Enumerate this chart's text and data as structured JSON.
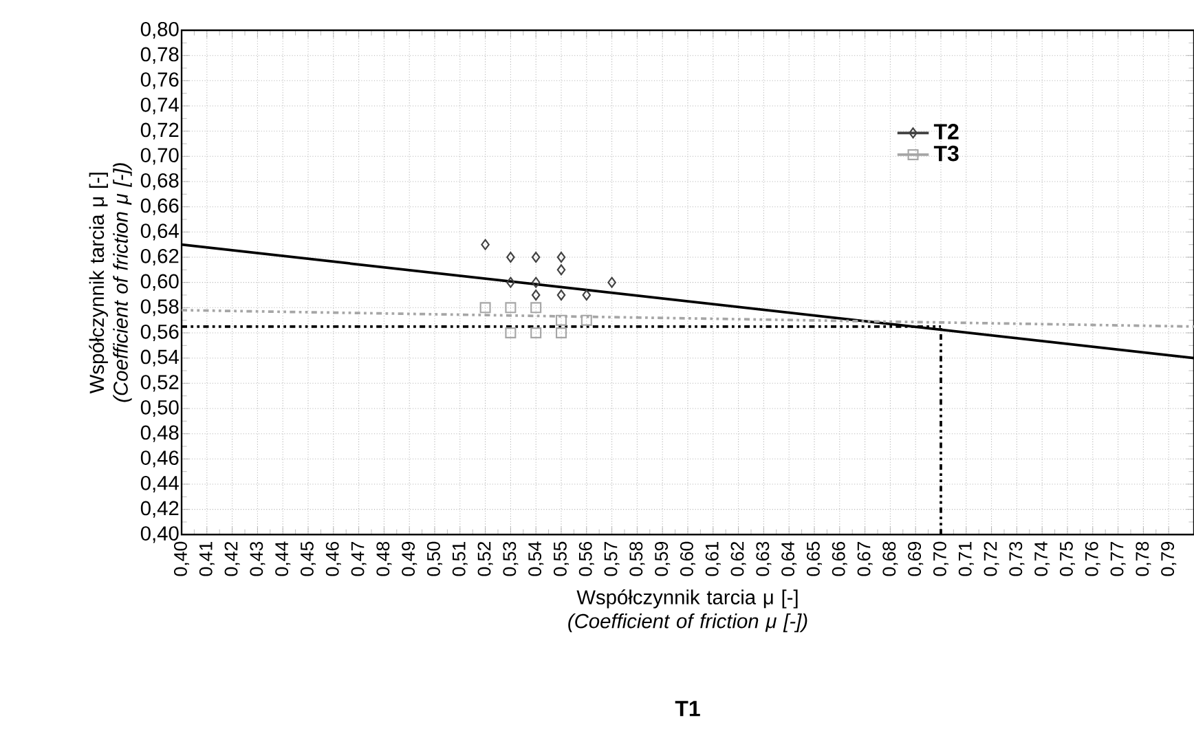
{
  "chart_data": {
    "type": "scatter",
    "xlabel": "Współczynnik tarcia μ [-] *(Coefficient of friction μ [-])*",
    "ylabel": "Współczynnik tarcia μ [-] *(Coefficient of friction μ [-])*",
    "annotations": [
      "T1"
    ],
    "xlim": [
      0.4,
      0.8
    ],
    "ylim": [
      0.4,
      0.8
    ],
    "xticks": [
      {
        "value": 0.4,
        "label": "0,40"
      },
      {
        "value": 0.41,
        "label": "0,41"
      },
      {
        "value": 0.42,
        "label": "0,42"
      },
      {
        "value": 0.43,
        "label": "0,43"
      },
      {
        "value": 0.44,
        "label": "0,44"
      },
      {
        "value": 0.45,
        "label": "0,45"
      },
      {
        "value": 0.46,
        "label": "0,46"
      },
      {
        "value": 0.47,
        "label": "0,47"
      },
      {
        "value": 0.48,
        "label": "0,48"
      },
      {
        "value": 0.49,
        "label": "0,49"
      },
      {
        "value": 0.5,
        "label": "0,50"
      },
      {
        "value": 0.51,
        "label": "0,51"
      },
      {
        "value": 0.52,
        "label": "0,52"
      },
      {
        "value": 0.53,
        "label": "0,53"
      },
      {
        "value": 0.54,
        "label": "0,54"
      },
      {
        "value": 0.55,
        "label": "0,55"
      },
      {
        "value": 0.56,
        "label": "0,56"
      },
      {
        "value": 0.57,
        "label": "0,57"
      },
      {
        "value": 0.58,
        "label": "0,58"
      },
      {
        "value": 0.59,
        "label": "0,59"
      },
      {
        "value": 0.6,
        "label": "0,60"
      },
      {
        "value": 0.61,
        "label": "0,61"
      },
      {
        "value": 0.62,
        "label": "0,62"
      },
      {
        "value": 0.63,
        "label": "0,63"
      },
      {
        "value": 0.64,
        "label": "0,64"
      },
      {
        "value": 0.65,
        "label": "0,65"
      },
      {
        "value": 0.66,
        "label": "0,66"
      },
      {
        "value": 0.67,
        "label": "0,67"
      },
      {
        "value": 0.68,
        "label": "0,68"
      },
      {
        "value": 0.69,
        "label": "0,69"
      },
      {
        "value": 0.7,
        "label": "0,70"
      },
      {
        "value": 0.71,
        "label": "0,71"
      },
      {
        "value": 0.72,
        "label": "0,72"
      },
      {
        "value": 0.73,
        "label": "0,73"
      },
      {
        "value": 0.74,
        "label": "0,74"
      },
      {
        "value": 0.75,
        "label": "0,75"
      },
      {
        "value": 0.76,
        "label": "0,76"
      },
      {
        "value": 0.77,
        "label": "0,77"
      },
      {
        "value": 0.78,
        "label": "0,78"
      },
      {
        "value": 0.79,
        "label": "0,79"
      }
    ],
    "yticks": [
      {
        "value": 0.4,
        "label": "0,40"
      },
      {
        "value": 0.42,
        "label": "0,42"
      },
      {
        "value": 0.44,
        "label": "0,44"
      },
      {
        "value": 0.46,
        "label": "0,46"
      },
      {
        "value": 0.48,
        "label": "0,48"
      },
      {
        "value": 0.5,
        "label": "0,50"
      },
      {
        "value": 0.52,
        "label": "0,52"
      },
      {
        "value": 0.54,
        "label": "0,54"
      },
      {
        "value": 0.56,
        "label": "0,56"
      },
      {
        "value": 0.58,
        "label": "0,58"
      },
      {
        "value": 0.6,
        "label": "0,60"
      },
      {
        "value": 0.62,
        "label": "0,62"
      },
      {
        "value": 0.64,
        "label": "0,64"
      },
      {
        "value": 0.66,
        "label": "0,66"
      },
      {
        "value": 0.68,
        "label": "0,68"
      },
      {
        "value": 0.7,
        "label": "0,70"
      },
      {
        "value": 0.72,
        "label": "0,72"
      },
      {
        "value": 0.74,
        "label": "0,74"
      },
      {
        "value": 0.76,
        "label": "0,76"
      },
      {
        "value": 0.78,
        "label": "0,78"
      },
      {
        "value": 0.8,
        "label": "0,80"
      }
    ],
    "grid": true,
    "legend": "top right",
    "series": [
      {
        "type": "line",
        "color": "#000000",
        "line_style": "solid",
        "marker": "none",
        "x": [
          0.4,
          0.8
        ],
        "values": [
          0.63,
          0.54
        ]
      },
      {
        "type": "line",
        "color": "#a6a6a6",
        "line_style": "dashed",
        "marker": "none",
        "x": [
          0.4,
          0.8
        ],
        "values": [
          0.578,
          0.565
        ]
      },
      {
        "type": "line",
        "color": "#000000",
        "line_style": "dashed",
        "marker": "none",
        "x": [
          0.4,
          0.7
        ],
        "values": [
          0.565,
          0.565
        ]
      },
      {
        "type": "line",
        "color": "#000000",
        "line_style": "dashed",
        "marker": "none",
        "x": [
          0.7,
          0.7
        ],
        "values": [
          0.4,
          0.565
        ]
      },
      {
        "name": "T2",
        "color": "#404040",
        "marker": "diamond",
        "x": [
          0.52,
          0.53,
          0.53,
          0.54,
          0.54,
          0.54,
          0.55,
          0.55,
          0.55,
          0.56,
          0.57
        ],
        "values": [
          0.63,
          0.62,
          0.6,
          0.62,
          0.6,
          0.59,
          0.62,
          0.61,
          0.59,
          0.59,
          0.6
        ]
      },
      {
        "name": "T3",
        "color": "#a6a6a6",
        "marker": "square",
        "x": [
          0.52,
          0.53,
          0.54,
          0.55,
          0.53,
          0.54,
          0.55,
          0.56
        ],
        "values": [
          0.58,
          0.58,
          0.58,
          0.57,
          0.56,
          0.56,
          0.56,
          0.57
        ]
      }
    ]
  }
}
